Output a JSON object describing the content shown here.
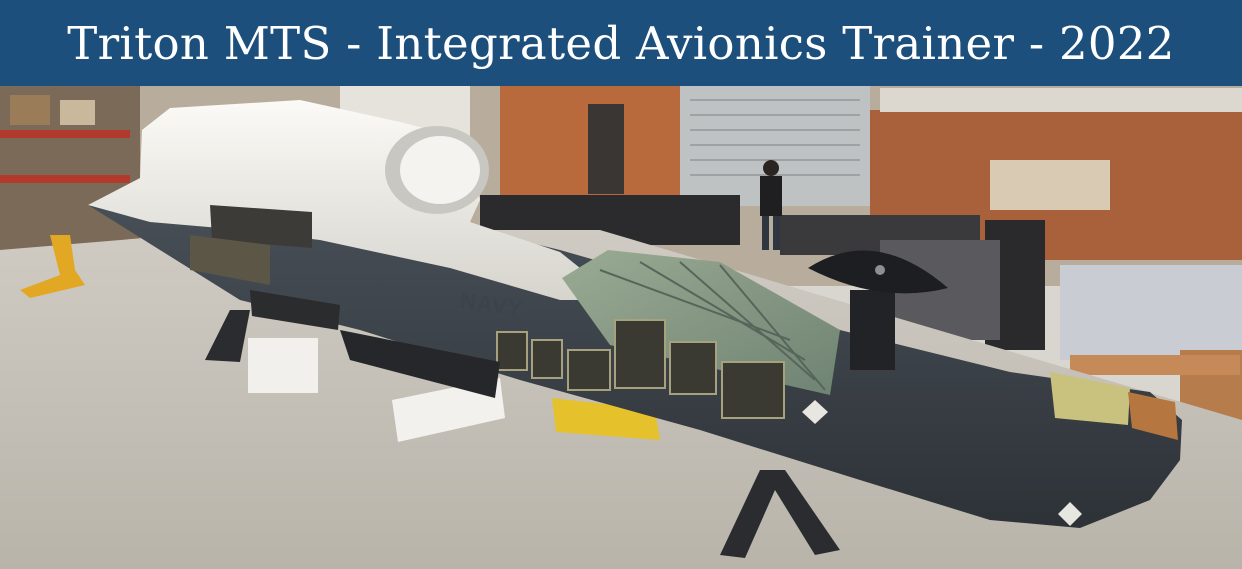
{
  "banner": {
    "title": "Triton MTS - Integrated Avionics Trainer - 2022",
    "background_color": "#1d4f7c",
    "text_color": "#ffffff"
  },
  "photo": {
    "fuselage_marking": "NAVY"
  }
}
